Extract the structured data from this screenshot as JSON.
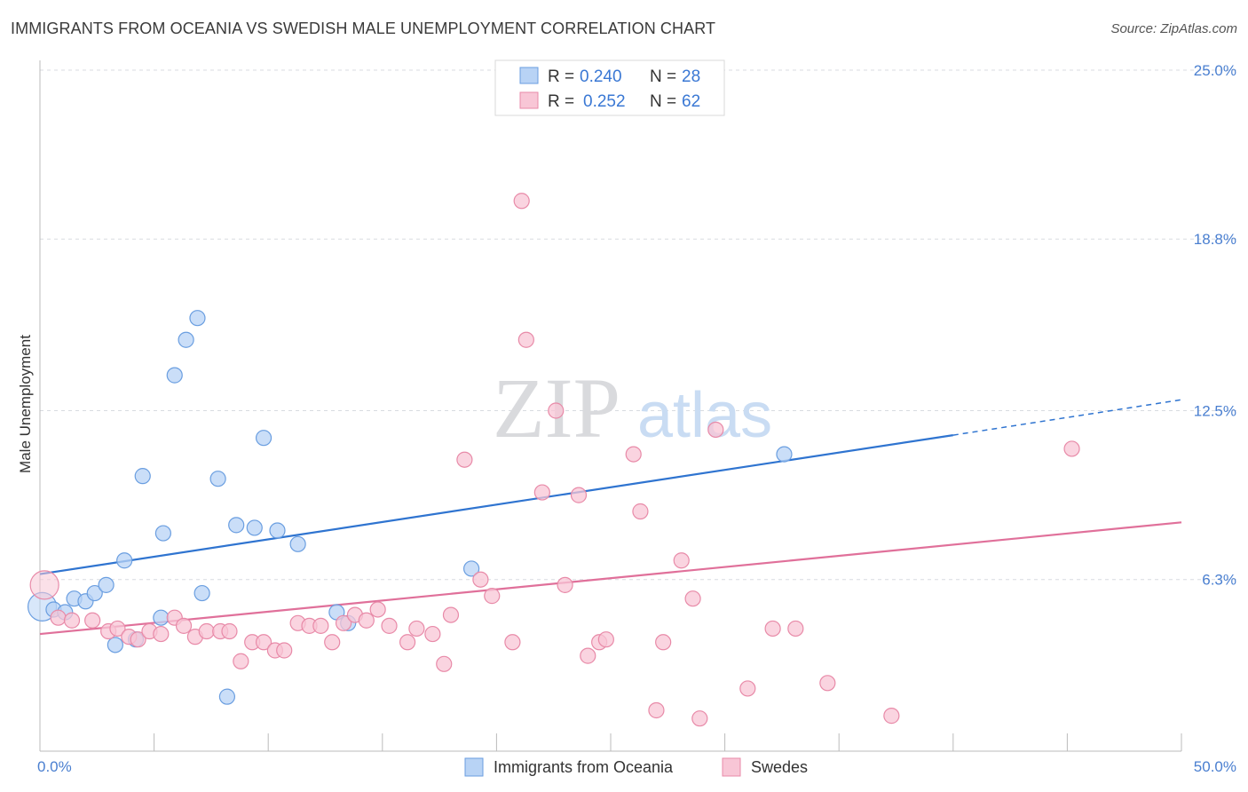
{
  "header": {
    "title": "IMMIGRANTS FROM OCEANIA VS SWEDISH MALE UNEMPLOYMENT CORRELATION CHART",
    "source": "Source: ZipAtlas.com"
  },
  "watermark": {
    "zip": "ZIP",
    "atlas": "atlas"
  },
  "colors": {
    "blue_fill": "#b8d3f5",
    "blue_stroke": "#6a9ee0",
    "blue_line": "#2f74d0",
    "pink_fill": "#f8c6d6",
    "pink_stroke": "#e88aa8",
    "pink_line": "#e0709a",
    "grid": "#d8dbe0",
    "tick_text": "#4a7fd0"
  },
  "chart_data": {
    "type": "scatter",
    "title": "IMMIGRANTS FROM OCEANIA VS SWEDISH MALE UNEMPLOYMENT CORRELATION CHART",
    "xlabel": "",
    "ylabel": "Male Unemployment",
    "xlim": [
      0,
      50
    ],
    "ylim": [
      0,
      25
    ],
    "x_tick_labels": [
      "0.0%",
      "50.0%"
    ],
    "y_ticks": [
      6.3,
      12.5,
      18.8,
      25.0
    ],
    "y_tick_labels": [
      "6.3%",
      "12.5%",
      "18.8%",
      "25.0%"
    ],
    "grid": "horizontal dashed",
    "legend_top": [
      {
        "r_label": "R =",
        "r_value": "0.240",
        "n_label": "N =",
        "n_value": "28"
      },
      {
        "r_label": "R =",
        "r_value": "0.252",
        "n_label": "N =",
        "n_value": "62"
      }
    ],
    "series": [
      {
        "name": "Immigrants from Oceania",
        "color": "#6a9ee0",
        "trend": {
          "x0": 0,
          "y0": 6.5,
          "x1": 40,
          "y1": 11.6,
          "dash_to_x": 50,
          "dash_to_y": 12.9
        },
        "points": [
          [
            0.1,
            5.3
          ],
          [
            0.6,
            5.2
          ],
          [
            1.1,
            5.1
          ],
          [
            1.5,
            5.6
          ],
          [
            2.0,
            5.5
          ],
          [
            2.4,
            5.8
          ],
          [
            2.9,
            6.1
          ],
          [
            3.3,
            3.9
          ],
          [
            3.7,
            7.0
          ],
          [
            4.2,
            4.1
          ],
          [
            4.5,
            10.1
          ],
          [
            5.3,
            4.9
          ],
          [
            5.4,
            8.0
          ],
          [
            5.9,
            13.8
          ],
          [
            6.4,
            15.1
          ],
          [
            6.9,
            15.9
          ],
          [
            7.1,
            5.8
          ],
          [
            7.8,
            10.0
          ],
          [
            8.2,
            2.0
          ],
          [
            8.6,
            8.3
          ],
          [
            9.4,
            8.2
          ],
          [
            9.8,
            11.5
          ],
          [
            10.4,
            8.1
          ],
          [
            11.3,
            7.6
          ],
          [
            13.0,
            5.1
          ],
          [
            13.5,
            4.7
          ],
          [
            18.9,
            6.7
          ],
          [
            32.6,
            10.9
          ]
        ]
      },
      {
        "name": "Swedes",
        "color": "#e88aa8",
        "trend": {
          "x0": 0,
          "y0": 4.3,
          "x1": 50,
          "y1": 8.4
        },
        "points": [
          [
            0.2,
            6.1
          ],
          [
            0.8,
            4.9
          ],
          [
            1.4,
            4.8
          ],
          [
            2.3,
            4.8
          ],
          [
            3.0,
            4.4
          ],
          [
            3.4,
            4.5
          ],
          [
            3.9,
            4.2
          ],
          [
            4.3,
            4.1
          ],
          [
            4.8,
            4.4
          ],
          [
            5.3,
            4.3
          ],
          [
            5.9,
            4.9
          ],
          [
            6.3,
            4.6
          ],
          [
            6.8,
            4.2
          ],
          [
            7.3,
            4.4
          ],
          [
            7.9,
            4.4
          ],
          [
            8.3,
            4.4
          ],
          [
            8.8,
            3.3
          ],
          [
            9.3,
            4.0
          ],
          [
            9.8,
            4.0
          ],
          [
            10.3,
            3.7
          ],
          [
            10.7,
            3.7
          ],
          [
            11.3,
            4.7
          ],
          [
            11.8,
            4.6
          ],
          [
            12.3,
            4.6
          ],
          [
            12.8,
            4.0
          ],
          [
            13.3,
            4.7
          ],
          [
            13.8,
            5.0
          ],
          [
            14.3,
            4.8
          ],
          [
            14.8,
            5.2
          ],
          [
            15.3,
            4.6
          ],
          [
            16.1,
            4.0
          ],
          [
            16.5,
            4.5
          ],
          [
            17.2,
            4.3
          ],
          [
            17.7,
            3.2
          ],
          [
            18.0,
            5.0
          ],
          [
            18.6,
            10.7
          ],
          [
            19.3,
            6.3
          ],
          [
            19.8,
            5.7
          ],
          [
            20.7,
            4.0
          ],
          [
            21.1,
            20.2
          ],
          [
            21.3,
            15.1
          ],
          [
            22.0,
            9.5
          ],
          [
            22.6,
            12.5
          ],
          [
            23.0,
            6.1
          ],
          [
            23.6,
            9.4
          ],
          [
            24.0,
            3.5
          ],
          [
            24.5,
            4.0
          ],
          [
            24.8,
            4.1
          ],
          [
            26.0,
            10.9
          ],
          [
            26.3,
            8.8
          ],
          [
            27.0,
            1.5
          ],
          [
            27.3,
            4.0
          ],
          [
            28.1,
            7.0
          ],
          [
            28.6,
            5.6
          ],
          [
            28.9,
            1.2
          ],
          [
            29.6,
            11.8
          ],
          [
            31.0,
            2.3
          ],
          [
            32.1,
            4.5
          ],
          [
            33.1,
            4.5
          ],
          [
            34.5,
            2.5
          ],
          [
            37.3,
            1.3
          ],
          [
            45.2,
            11.1
          ]
        ]
      }
    ]
  },
  "bottom_legend": {
    "blue_label": "Immigrants from Oceania",
    "pink_label": "Swedes"
  }
}
